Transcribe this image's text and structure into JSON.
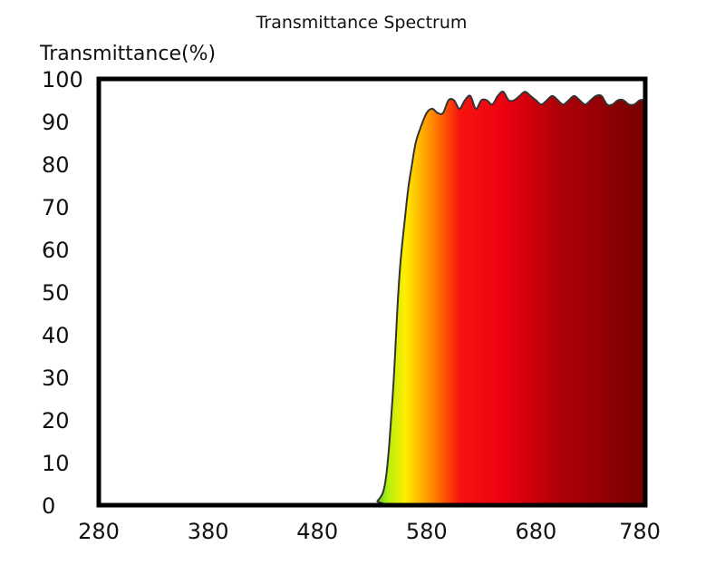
{
  "chart_data": {
    "type": "area",
    "title": "Transmittance Spectrum",
    "xlabel": "",
    "ylabel": "Transmittance(%)",
    "xlim": [
      280,
      780
    ],
    "ylim": [
      0,
      100
    ],
    "grid": false,
    "x_ticks": [
      280,
      380,
      480,
      580,
      680,
      780
    ],
    "x_tick_labels": [
      "280",
      "380",
      "480",
      "580",
      "680",
      "780"
    ],
    "y_ticks": [
      0,
      10,
      20,
      30,
      40,
      50,
      60,
      70,
      80,
      90,
      100
    ],
    "y_tick_labels": [
      "0",
      "10",
      "20",
      "30",
      "40",
      "50",
      "60",
      "70",
      "80",
      "90",
      "100"
    ],
    "series": [
      {
        "name": "Transmittance",
        "x": [
          280,
          400,
          530,
          535,
          540,
          543,
          546,
          550,
          553,
          556,
          560,
          563,
          566,
          570,
          575,
          580,
          585,
          590,
          595,
          600,
          605,
          610,
          615,
          620,
          625,
          630,
          635,
          640,
          645,
          650,
          655,
          660,
          665,
          670,
          675,
          680,
          685,
          690,
          695,
          700,
          705,
          710,
          715,
          720,
          725,
          730,
          735,
          740,
          745,
          750,
          755,
          760,
          765,
          770,
          775,
          780
        ],
        "values": [
          0,
          0,
          0,
          1,
          3,
          7,
          15,
          30,
          45,
          57,
          67,
          74,
          79,
          85,
          89,
          92,
          93,
          92,
          92,
          95,
          95,
          93,
          95,
          96,
          93,
          95,
          95,
          94,
          96,
          97,
          95,
          95,
          96,
          97,
          96,
          95,
          94,
          95,
          96,
          95,
          94,
          95,
          96,
          95,
          94,
          95,
          96,
          96,
          94,
          94,
          95,
          95,
          94,
          94,
          95,
          95
        ]
      }
    ],
    "colors": {
      "line": "#333333",
      "frame": "#000000",
      "gradient_stops": [
        {
          "wavelength": 530,
          "color": "#2ecc1a"
        },
        {
          "wavelength": 545,
          "color": "#b7ef10"
        },
        {
          "wavelength": 560,
          "color": "#ffee00"
        },
        {
          "wavelength": 575,
          "color": "#ffb300"
        },
        {
          "wavelength": 590,
          "color": "#ff7300"
        },
        {
          "wavelength": 610,
          "color": "#f5150f"
        },
        {
          "wavelength": 650,
          "color": "#ee0010"
        },
        {
          "wavelength": 700,
          "color": "#b00008"
        },
        {
          "wavelength": 780,
          "color": "#760000"
        }
      ]
    }
  }
}
